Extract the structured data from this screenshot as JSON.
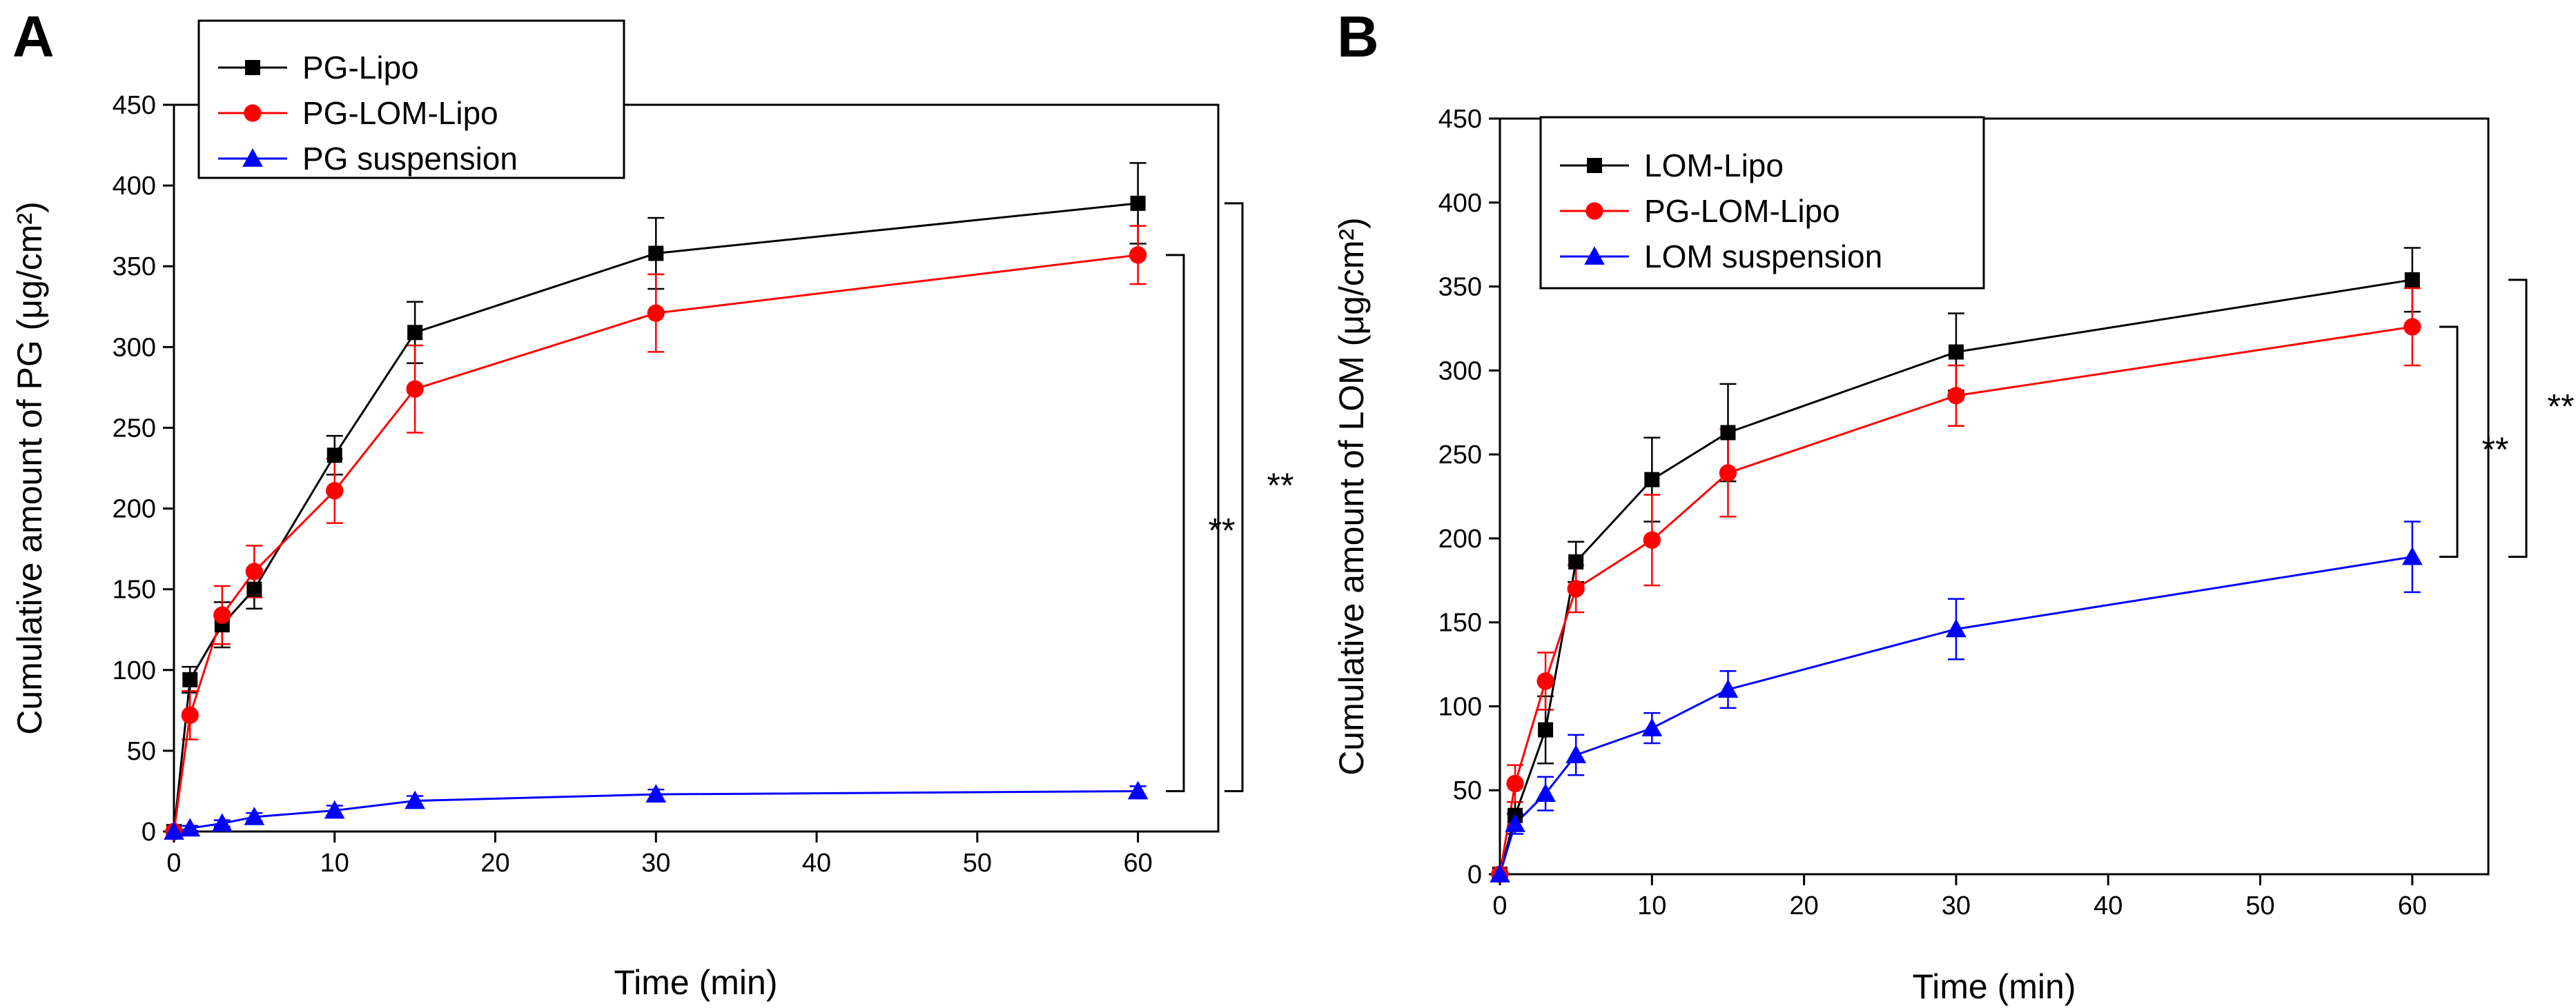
{
  "chart_data": [
    {
      "panel": "A",
      "type": "line",
      "xlabel": "Time (min)",
      "ylabel": "Cumulative amount of PG (μg/cm²)",
      "xlim": [
        0,
        65
      ],
      "ylim": [
        0,
        450
      ],
      "xticks": [
        0,
        10,
        20,
        30,
        40,
        50,
        60
      ],
      "yticks": [
        0,
        50,
        100,
        150,
        200,
        250,
        300,
        350,
        400,
        450
      ],
      "legend_position": "top-left",
      "series": [
        {
          "name": "PG-Lipo",
          "color": "#000000",
          "marker": "square",
          "x": [
            0,
            1,
            3,
            5,
            10,
            15,
            30,
            60
          ],
          "y": [
            0,
            94,
            128,
            150,
            233,
            309,
            358,
            389
          ],
          "err": [
            0,
            8,
            14,
            12,
            12,
            19,
            22,
            25
          ]
        },
        {
          "name": "PG-LOM-Lipo",
          "color": "#ff0000",
          "marker": "circle",
          "x": [
            0,
            1,
            3,
            5,
            10,
            15,
            30,
            60
          ],
          "y": [
            0,
            72,
            134,
            161,
            211,
            274,
            321,
            357
          ],
          "err": [
            0,
            15,
            18,
            16,
            20,
            27,
            24,
            18
          ]
        },
        {
          "name": "PG suspension",
          "color": "#0000ff",
          "marker": "triangle",
          "x": [
            0,
            1,
            3,
            5,
            10,
            15,
            30,
            60
          ],
          "y": [
            0,
            2,
            5,
            9,
            13,
            19,
            23,
            25
          ],
          "err": [
            0,
            1.5,
            2,
            2.5,
            3,
            3,
            3,
            3
          ]
        }
      ],
      "significance": [
        {
          "label": "**",
          "from_series": "PG-LOM-Lipo",
          "to_series": "PG suspension"
        },
        {
          "label": "**",
          "from_series": "PG-Lipo",
          "to_series": "PG suspension"
        }
      ]
    },
    {
      "panel": "B",
      "type": "line",
      "xlabel": "Time (min)",
      "ylabel": "Cumulative amount of LOM (μg/cm²)",
      "xlim": [
        0,
        65
      ],
      "ylim": [
        0,
        450
      ],
      "xticks": [
        0,
        10,
        20,
        30,
        40,
        50,
        60
      ],
      "yticks": [
        0,
        50,
        100,
        150,
        200,
        250,
        300,
        350,
        400,
        450
      ],
      "legend_position": "top-left",
      "series": [
        {
          "name": "LOM-Lipo",
          "color": "#000000",
          "marker": "square",
          "x": [
            0,
            1,
            3,
            5,
            10,
            15,
            30,
            60
          ],
          "y": [
            0,
            35,
            86,
            186,
            235,
            263,
            311,
            354
          ],
          "err": [
            0,
            8,
            20,
            12,
            25,
            29,
            23,
            19
          ]
        },
        {
          "name": "PG-LOM-Lipo",
          "color": "#ff0000",
          "marker": "circle",
          "x": [
            0,
            1,
            3,
            5,
            10,
            15,
            30,
            60
          ],
          "y": [
            0,
            54,
            115,
            170,
            199,
            239,
            285,
            326
          ],
          "err": [
            0,
            11,
            17,
            14,
            27,
            26,
            18,
            23
          ]
        },
        {
          "name": "LOM suspension",
          "color": "#0000ff",
          "marker": "triangle",
          "x": [
            0,
            1,
            3,
            5,
            10,
            15,
            30,
            60
          ],
          "y": [
            0,
            30,
            48,
            71,
            87,
            110,
            146,
            189
          ],
          "err": [
            0,
            6,
            10,
            12,
            9,
            11,
            18,
            21
          ]
        }
      ],
      "significance": [
        {
          "label": "**",
          "from_series": "PG-LOM-Lipo",
          "to_series": "LOM suspension"
        },
        {
          "label": "**",
          "from_series": "LOM-Lipo",
          "to_series": "LOM suspension"
        }
      ]
    }
  ]
}
